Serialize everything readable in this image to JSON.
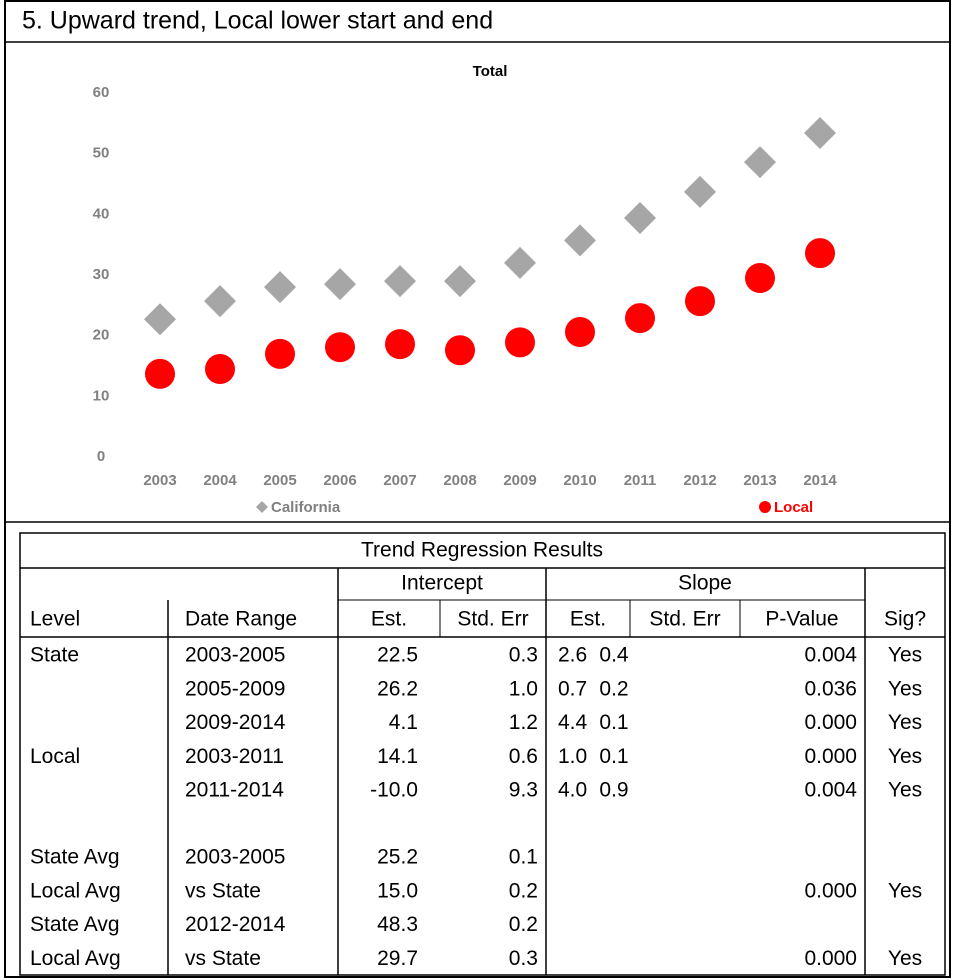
{
  "title": "5. Upward trend, Local lower start and end",
  "chart_data": {
    "type": "scatter",
    "title": "Total",
    "categories": [
      "2003",
      "2004",
      "2005",
      "2006",
      "2007",
      "2008",
      "2009",
      "2010",
      "2011",
      "2012",
      "2013",
      "2014"
    ],
    "series": [
      {
        "name": "California",
        "color": "#a6a6a6",
        "marker": "diamond",
        "values": [
          22.7,
          25.7,
          28.0,
          28.5,
          29.0,
          29.0,
          32.0,
          35.7,
          39.4,
          43.7,
          48.6,
          53.4
        ]
      },
      {
        "name": "Local",
        "color": "#ff0000",
        "marker": "circle",
        "values": [
          13.7,
          14.5,
          17.0,
          18.1,
          18.6,
          17.6,
          18.9,
          20.6,
          22.9,
          25.7,
          29.5,
          33.6
        ]
      }
    ],
    "ylim": [
      0,
      60
    ],
    "yticks": [
      0,
      10,
      20,
      30,
      40,
      50,
      60
    ],
    "grid": false,
    "legend": "bottom"
  },
  "table": {
    "title": "Trend Regression Results",
    "group_headers": {
      "intercept": "Intercept",
      "slope": "Slope"
    },
    "headers": {
      "level": "Level",
      "date_range": "Date Range",
      "intercept_est": "Est.",
      "intercept_se": "Std. Err",
      "slope_est": "Est.",
      "slope_se": "Std. Err",
      "p_value": "P-Value",
      "sig": "Sig?"
    },
    "trend_rows": [
      {
        "level": "State",
        "date_range": "2003-2005",
        "intercept_est": "22.5",
        "intercept_se": "0.3",
        "slope_est": "2.6",
        "slope_se": "0.4",
        "p_value": "0.004",
        "sig": "Yes"
      },
      {
        "date_range": "2005-2009",
        "intercept_est": "26.2",
        "intercept_se": "1.0",
        "slope_est": "0.7",
        "slope_se": "0.2",
        "p_value": "0.036",
        "sig": "Yes"
      },
      {
        "date_range": "2009-2014",
        "intercept_est": "4.1",
        "intercept_se": "1.2",
        "slope_est": "4.4",
        "slope_se": "0.1",
        "p_value": "0.000",
        "sig": "Yes"
      },
      {
        "level": "Local",
        "date_range": "2003-2011",
        "intercept_est": "14.1",
        "intercept_se": "0.6",
        "slope_est": "1.0",
        "slope_se": "0.1",
        "p_value": "0.000",
        "sig": "Yes"
      },
      {
        "date_range": "2011-2014",
        "intercept_est": "-10.0",
        "intercept_se": "9.3",
        "slope_est": "4.0",
        "slope_se": "0.9",
        "p_value": "0.004",
        "sig": "Yes"
      }
    ],
    "average_rows": [
      {
        "level": "State Avg",
        "date_range": "2003-2005",
        "intercept_est": "25.2",
        "intercept_se": "0.1"
      },
      {
        "level": "Local Avg",
        "date_range": "vs State",
        "intercept_est": "15.0",
        "intercept_se": "0.2",
        "p_value": "0.000",
        "sig": "Yes"
      },
      {
        "level": "State Avg",
        "date_range": "2012-2014",
        "intercept_est": "48.3",
        "intercept_se": "0.2"
      },
      {
        "level": "Local Avg",
        "date_range": "vs State",
        "intercept_est": "29.7",
        "intercept_se": "0.3",
        "p_value": "0.000",
        "sig": "Yes"
      }
    ]
  }
}
